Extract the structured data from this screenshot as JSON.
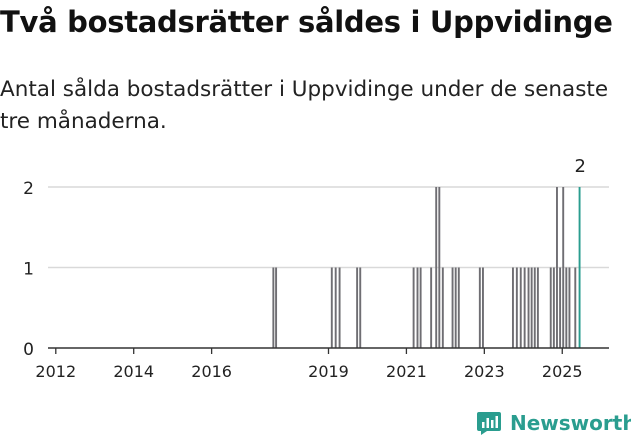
{
  "title": "Två bostadsrätter såldes i Uppvidinge",
  "subtitle": "Antal sålda bostadsrätter i Uppvidinge under de senaste tre månaderna.",
  "logo": {
    "text": "Newsworthy"
  },
  "colors": {
    "bar": "#6f6e73",
    "highlight": "#2a9d8f",
    "grid": "#d9d9d9",
    "axis": "#333333"
  },
  "chart_data": {
    "type": "bar",
    "title": "Två bostadsrätter såldes i Uppvidinge",
    "xlabel": "",
    "ylabel": "",
    "ylim": [
      0,
      2
    ],
    "yticks": [
      0,
      1,
      2
    ],
    "xlim": [
      2011.8,
      2026.2
    ],
    "xticks": [
      2012,
      2014,
      2016,
      2019,
      2021,
      2023,
      2025
    ],
    "grid": true,
    "bar_width_years": 0.08,
    "annotation": {
      "x": 2025.46,
      "text": "2"
    },
    "highlight_x": 2025.46,
    "points": [
      {
        "x": 2017.6,
        "y": 1
      },
      {
        "x": 2017.67,
        "y": 1
      },
      {
        "x": 2019.1,
        "y": 1
      },
      {
        "x": 2019.2,
        "y": 1
      },
      {
        "x": 2019.3,
        "y": 1
      },
      {
        "x": 2019.75,
        "y": 1
      },
      {
        "x": 2019.83,
        "y": 1
      },
      {
        "x": 2021.2,
        "y": 1
      },
      {
        "x": 2021.3,
        "y": 1
      },
      {
        "x": 2021.38,
        "y": 1
      },
      {
        "x": 2021.65,
        "y": 1
      },
      {
        "x": 2021.78,
        "y": 2
      },
      {
        "x": 2021.86,
        "y": 2
      },
      {
        "x": 2021.95,
        "y": 1
      },
      {
        "x": 2022.2,
        "y": 1
      },
      {
        "x": 2022.28,
        "y": 1
      },
      {
        "x": 2022.36,
        "y": 1
      },
      {
        "x": 2022.9,
        "y": 1
      },
      {
        "x": 2022.98,
        "y": 1
      },
      {
        "x": 2023.75,
        "y": 1
      },
      {
        "x": 2023.85,
        "y": 1
      },
      {
        "x": 2023.95,
        "y": 1
      },
      {
        "x": 2024.05,
        "y": 1
      },
      {
        "x": 2024.15,
        "y": 1
      },
      {
        "x": 2024.23,
        "y": 1
      },
      {
        "x": 2024.31,
        "y": 1
      },
      {
        "x": 2024.39,
        "y": 1
      },
      {
        "x": 2024.72,
        "y": 1
      },
      {
        "x": 2024.8,
        "y": 1
      },
      {
        "x": 2024.88,
        "y": 2
      },
      {
        "x": 2024.96,
        "y": 1
      },
      {
        "x": 2025.04,
        "y": 2
      },
      {
        "x": 2025.12,
        "y": 1
      },
      {
        "x": 2025.2,
        "y": 1
      },
      {
        "x": 2025.35,
        "y": 1
      },
      {
        "x": 2025.46,
        "y": 2
      }
    ]
  }
}
